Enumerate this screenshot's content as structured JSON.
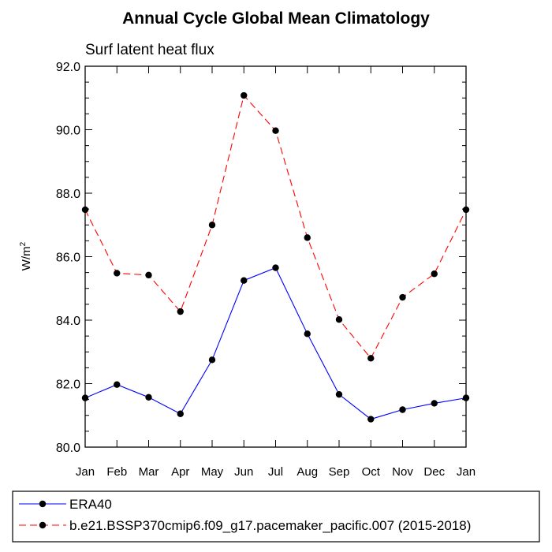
{
  "chart_data": {
    "type": "line",
    "title": "Annual Cycle Global Mean Climatology",
    "subtitle": "Surf latent heat flux",
    "ylabel": "W/m",
    "ylabel_sup": "2",
    "xlabel": "",
    "ylim": [
      80.0,
      92.0
    ],
    "y_ticks": [
      "80.0",
      "82.0",
      "84.0",
      "86.0",
      "88.0",
      "90.0",
      "92.0"
    ],
    "categories": [
      "Jan",
      "Feb",
      "Mar",
      "Apr",
      "May",
      "Jun",
      "Jul",
      "Aug",
      "Sep",
      "Oct",
      "Nov",
      "Dec",
      "Jan"
    ],
    "grid": false,
    "legend_position": "bottom",
    "series": [
      {
        "name": "ERA40",
        "color": "#0000ff",
        "dash": "solid",
        "values": [
          81.55,
          81.97,
          81.57,
          81.05,
          82.75,
          85.25,
          85.65,
          83.57,
          81.66,
          80.88,
          81.18,
          81.38,
          81.55
        ]
      },
      {
        "name": "b.e21.BSSP370cmip6.f09_g17.pacemaker_pacific.007 (2015-2018)",
        "color": "#ff0000",
        "dash": "dashed",
        "values": [
          87.48,
          85.48,
          85.42,
          84.27,
          87.0,
          91.08,
          89.97,
          86.6,
          84.02,
          82.8,
          84.72,
          85.46,
          87.48
        ]
      }
    ]
  }
}
